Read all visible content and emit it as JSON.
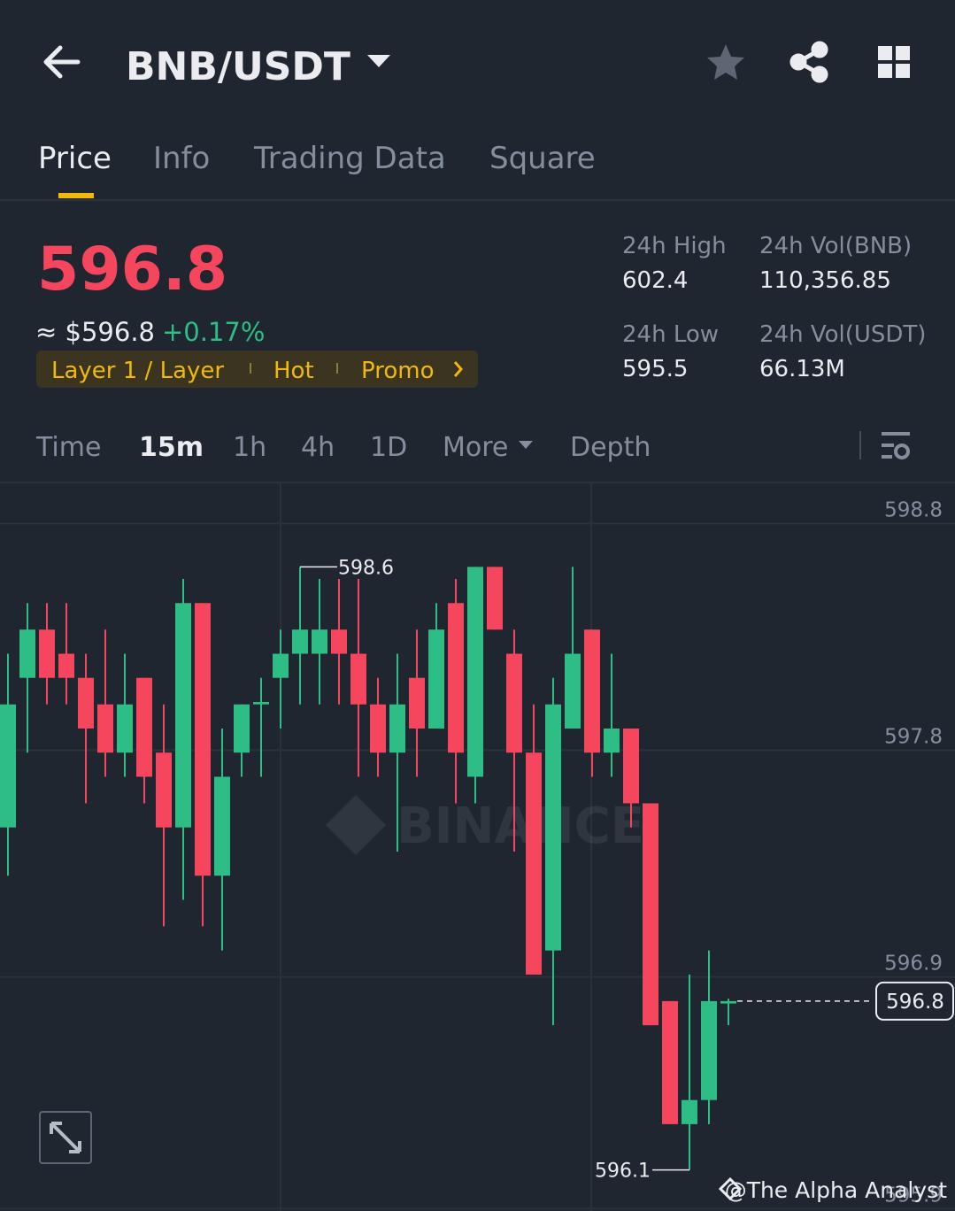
{
  "header": {
    "pair": "BNB/USDT"
  },
  "tabs": [
    "Price",
    "Info",
    "Trading Data",
    "Square"
  ],
  "price": {
    "last": "596.8",
    "approx": "≈ $596.8",
    "change": "+0.17%"
  },
  "tags": [
    "Layer 1 / Layer",
    "Hot",
    "Promo"
  ],
  "stats": [
    {
      "label": "24h High",
      "value": "602.4"
    },
    {
      "label": "24h Vol(BNB)",
      "value": "110,356.85"
    },
    {
      "label": "24h Low",
      "value": "595.5"
    },
    {
      "label": "24h Vol(USDT)",
      "value": "66.13M"
    }
  ],
  "intervals": [
    "Time",
    "15m",
    "1h",
    "4h",
    "1D",
    "More",
    "Depth"
  ],
  "chart": {
    "type": "candlestick",
    "watermark": "BINANCE",
    "up_color": "#2ebd85",
    "down_color": "#f6465d",
    "ylim": [
      595.93,
      598.95
    ],
    "yticks": [
      {
        "value": 598.78,
        "label": "598.8"
      },
      {
        "value": 597.84,
        "label": "597.8"
      },
      {
        "value": 596.9,
        "label": "596.9"
      },
      {
        "value": 595.94,
        "label": "595.9"
      }
    ],
    "grid": true,
    "candles": [
      {
        "open": 597.52,
        "high": 598.24,
        "low": 597.32,
        "close": 598.03
      },
      {
        "open": 598.14,
        "high": 598.45,
        "low": 597.83,
        "close": 598.34
      },
      {
        "open": 598.34,
        "high": 598.45,
        "low": 598.03,
        "close": 598.14
      },
      {
        "open": 598.24,
        "high": 598.45,
        "low": 598.03,
        "close": 598.14
      },
      {
        "open": 598.14,
        "high": 598.24,
        "low": 597.62,
        "close": 597.93
      },
      {
        "open": 598.03,
        "high": 598.34,
        "low": 597.73,
        "close": 597.83
      },
      {
        "open": 597.83,
        "high": 598.24,
        "low": 597.73,
        "close": 598.03
      },
      {
        "open": 598.14,
        "high": 598.14,
        "low": 597.62,
        "close": 597.73
      },
      {
        "open": 597.83,
        "high": 598.03,
        "low": 597.11,
        "close": 597.52
      },
      {
        "open": 597.52,
        "high": 598.55,
        "low": 597.22,
        "close": 598.45
      },
      {
        "open": 598.45,
        "high": 598.45,
        "low": 597.11,
        "close": 597.32
      },
      {
        "open": 597.32,
        "high": 597.93,
        "low": 597.01,
        "close": 597.73
      },
      {
        "open": 597.83,
        "high": 598.03,
        "low": 597.73,
        "close": 598.03
      },
      {
        "open": 598.03,
        "high": 598.14,
        "low": 597.73,
        "close": 598.04
      },
      {
        "open": 598.14,
        "high": 598.34,
        "low": 597.93,
        "close": 598.24
      },
      {
        "open": 598.24,
        "high": 598.6,
        "low": 598.03,
        "close": 598.34
      },
      {
        "open": 598.24,
        "high": 598.55,
        "low": 598.03,
        "close": 598.34
      },
      {
        "open": 598.34,
        "high": 598.55,
        "low": 598.03,
        "close": 598.24
      },
      {
        "open": 598.24,
        "high": 598.55,
        "low": 597.73,
        "close": 598.03
      },
      {
        "open": 598.03,
        "high": 598.14,
        "low": 597.73,
        "close": 597.83
      },
      {
        "open": 597.83,
        "high": 598.24,
        "low": 597.42,
        "close": 598.03
      },
      {
        "open": 598.14,
        "high": 598.34,
        "low": 597.73,
        "close": 597.93
      },
      {
        "open": 597.93,
        "high": 598.45,
        "low": 597.93,
        "close": 598.34
      },
      {
        "open": 598.45,
        "high": 598.55,
        "low": 597.62,
        "close": 597.83
      },
      {
        "open": 597.73,
        "high": 598.6,
        "low": 597.62,
        "close": 598.6
      },
      {
        "open": 598.6,
        "high": 598.6,
        "low": 598.34,
        "close": 598.34
      },
      {
        "open": 598.24,
        "high": 598.34,
        "low": 597.42,
        "close": 597.83
      },
      {
        "open": 597.83,
        "high": 598.03,
        "low": 596.91,
        "close": 596.91
      },
      {
        "open": 597.01,
        "high": 598.14,
        "low": 596.7,
        "close": 598.03
      },
      {
        "open": 597.93,
        "high": 598.6,
        "low": 597.93,
        "close": 598.24
      },
      {
        "open": 598.34,
        "high": 598.34,
        "low": 597.73,
        "close": 597.83
      },
      {
        "open": 597.83,
        "high": 598.24,
        "low": 597.73,
        "close": 597.93
      },
      {
        "open": 597.93,
        "high": 597.93,
        "low": 597.52,
        "close": 597.62
      },
      {
        "open": 597.62,
        "high": 597.62,
        "low": 596.7,
        "close": 596.7
      },
      {
        "open": 596.8,
        "high": 596.8,
        "low": 596.29,
        "close": 596.29
      },
      {
        "open": 596.29,
        "high": 596.91,
        "low": 596.1,
        "close": 596.39
      },
      {
        "open": 596.39,
        "high": 597.01,
        "low": 596.29,
        "close": 596.8
      },
      {
        "open": 596.79,
        "high": 596.81,
        "low": 596.7,
        "close": 596.8
      }
    ]
  },
  "footer": {
    "credit": "@The Alpha Analyst"
  }
}
